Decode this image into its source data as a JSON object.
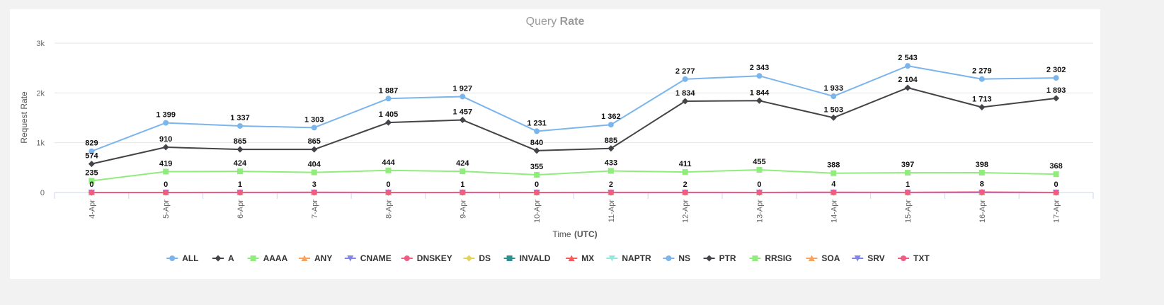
{
  "chart_data": {
    "type": "line",
    "title_part1": "Query",
    "title_part2": "Rate",
    "xlabel_part1": "Time",
    "xlabel_part2": "(UTC)",
    "ylabel": "Request Rate",
    "ylim": [
      0,
      3000
    ],
    "yticks": [
      {
        "value": 0,
        "label": "0"
      },
      {
        "value": 1000,
        "label": "1k"
      },
      {
        "value": 2000,
        "label": "2k"
      },
      {
        "value": 3000,
        "label": "3k"
      }
    ],
    "categories": [
      "4-Apr",
      "5-Apr",
      "6-Apr",
      "7-Apr",
      "8-Apr",
      "9-Apr",
      "10-Apr",
      "11-Apr",
      "12-Apr",
      "13-Apr",
      "14-Apr",
      "15-Apr",
      "16-Apr",
      "17-Apr"
    ],
    "grid": true,
    "legend_position": "bottom-center",
    "series": [
      {
        "name": "ALL",
        "color": "#7cb5ec",
        "marker": "circle",
        "show_labels": true,
        "values": [
          829,
          1399,
          1337,
          1303,
          1887,
          1927,
          1231,
          1362,
          2277,
          2343,
          1933,
          2543,
          2279,
          2302
        ]
      },
      {
        "name": "A",
        "color": "#434348",
        "marker": "diamond",
        "show_labels": true,
        "values": [
          574,
          910,
          865,
          865,
          1405,
          1457,
          840,
          885,
          1834,
          1844,
          1503,
          2104,
          1713,
          1893
        ]
      },
      {
        "name": "AAAA",
        "color": "#90ed7d",
        "marker": "square",
        "show_labels": true,
        "values": [
          235,
          419,
          424,
          404,
          444,
          424,
          355,
          433,
          411,
          455,
          388,
          397,
          398,
          368
        ]
      },
      {
        "name": "ANY",
        "color": "#f7a35c",
        "marker": "triangle",
        "show_labels": false,
        "values": [
          0,
          0,
          0,
          0,
          0,
          0,
          0,
          0,
          0,
          0,
          0,
          0,
          0,
          0
        ]
      },
      {
        "name": "CNAME",
        "color": "#8085e9",
        "marker": "triangle-down",
        "show_labels": false,
        "values": [
          0,
          0,
          0,
          0,
          0,
          0,
          0,
          0,
          0,
          0,
          0,
          0,
          0,
          0
        ]
      },
      {
        "name": "DNSKEY",
        "color": "#f15c80",
        "marker": "circle",
        "show_labels": false,
        "values": [
          0,
          0,
          0,
          0,
          0,
          0,
          0,
          0,
          0,
          0,
          0,
          0,
          0,
          0
        ]
      },
      {
        "name": "DS",
        "color": "#e4d354",
        "marker": "diamond",
        "show_labels": false,
        "values": [
          0,
          0,
          0,
          0,
          0,
          0,
          0,
          0,
          0,
          0,
          0,
          0,
          0,
          0
        ]
      },
      {
        "name": "INVALD",
        "color": "#2b908f",
        "marker": "square",
        "show_labels": false,
        "values": [
          0,
          0,
          0,
          0,
          0,
          0,
          0,
          0,
          0,
          0,
          0,
          0,
          0,
          0
        ]
      },
      {
        "name": "MX",
        "color": "#f45b5b",
        "marker": "triangle",
        "show_labels": false,
        "values": [
          0,
          0,
          0,
          0,
          0,
          0,
          0,
          0,
          0,
          0,
          0,
          0,
          0,
          0
        ]
      },
      {
        "name": "NAPTR",
        "color": "#91e8e1",
        "marker": "triangle-down",
        "show_labels": false,
        "values": [
          0,
          0,
          0,
          0,
          0,
          0,
          0,
          0,
          0,
          0,
          0,
          0,
          0,
          0
        ]
      },
      {
        "name": "NS",
        "color": "#7cb5ec",
        "marker": "circle",
        "show_labels": false,
        "values": [
          0,
          0,
          0,
          0,
          0,
          0,
          0,
          0,
          0,
          0,
          0,
          0,
          0,
          0
        ]
      },
      {
        "name": "PTR",
        "color": "#434348",
        "marker": "diamond",
        "show_labels": false,
        "values": [
          0,
          0,
          0,
          0,
          0,
          0,
          0,
          0,
          0,
          0,
          0,
          0,
          0,
          0
        ]
      },
      {
        "name": "RRSIG",
        "color": "#90ed7d",
        "marker": "square",
        "show_labels": false,
        "values": [
          0,
          0,
          0,
          0,
          0,
          0,
          0,
          0,
          0,
          0,
          0,
          0,
          0,
          0
        ]
      },
      {
        "name": "SOA",
        "color": "#f7a35c",
        "marker": "triangle",
        "show_labels": false,
        "values": [
          0,
          0,
          0,
          0,
          0,
          0,
          0,
          0,
          0,
          0,
          0,
          0,
          0,
          0
        ]
      },
      {
        "name": "SRV",
        "color": "#8085e9",
        "marker": "triangle-down",
        "show_labels": false,
        "values": [
          0,
          0,
          0,
          0,
          0,
          0,
          0,
          0,
          0,
          0,
          0,
          0,
          0,
          0
        ]
      },
      {
        "name": "TXT",
        "color": "#f15c80",
        "marker": "circle",
        "show_labels": true,
        "values": [
          0,
          0,
          1,
          3,
          0,
          1,
          0,
          2,
          2,
          0,
          4,
          1,
          8,
          0
        ]
      }
    ]
  }
}
